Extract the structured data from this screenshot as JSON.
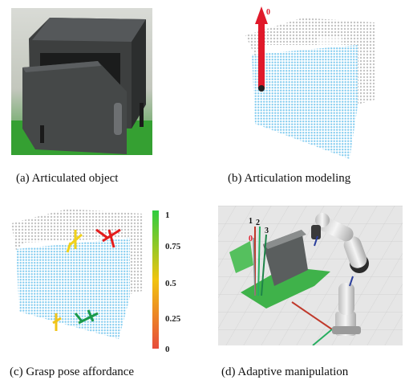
{
  "figure": {
    "panels": [
      {
        "id": "a",
        "caption": "(a) Articulated object"
      },
      {
        "id": "b",
        "caption": "(b) Articulation modeling",
        "axis_label": "0"
      },
      {
        "id": "c",
        "caption": "(c) Grasp pose affordance",
        "colorbar": {
          "ticks": [
            "1",
            "0.75",
            "0.5",
            "0.25",
            "0"
          ],
          "gradient": [
            "#2ecc40",
            "#f1c40f",
            "#e74c3c"
          ]
        }
      },
      {
        "id": "d",
        "caption": "(d) Adaptive manipulation",
        "axis_labels": [
          "1",
          "2",
          "0",
          "3"
        ]
      }
    ],
    "colors": {
      "points_blue": "#8fd3f4",
      "points_gray": "#c8c8c8",
      "axis_red": "#e0192a"
    }
  }
}
